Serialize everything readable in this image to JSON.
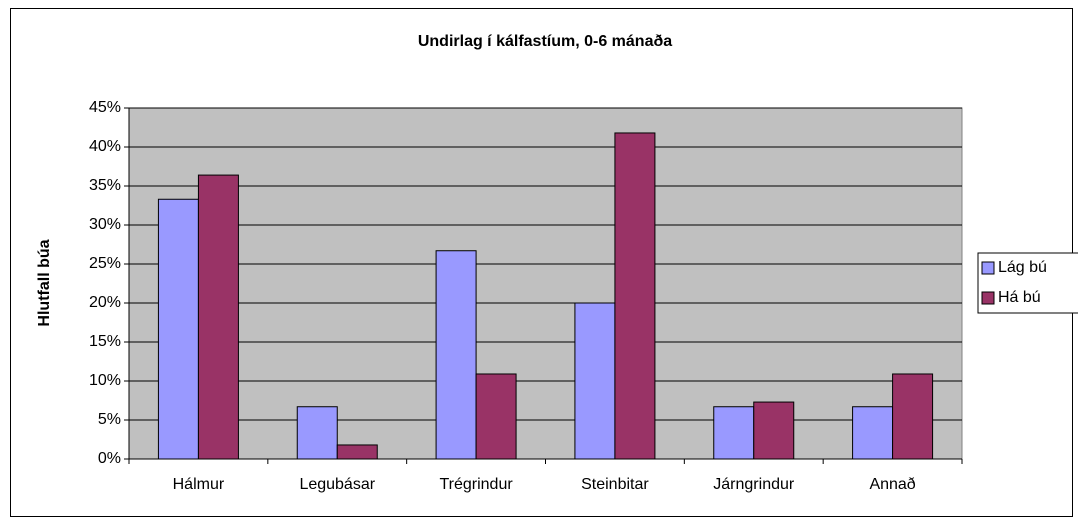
{
  "chart_data": {
    "type": "bar",
    "title": "Undirlag í kálfastíum, 0-6 mánaða",
    "ylabel": "Hlutfall búa",
    "categories": [
      "Hálmur",
      "Legubásar",
      "Trégrindur",
      "Steinbitar",
      "Járngrindur",
      "Annað"
    ],
    "series": [
      {
        "name": "Lág bú",
        "color": "#9999ff",
        "values": [
          33.3,
          6.7,
          26.7,
          20,
          6.7,
          6.7
        ]
      },
      {
        "name": "Há bú",
        "color": "#993366",
        "values": [
          36.4,
          1.8,
          10.9,
          41.8,
          7.3,
          10.9
        ]
      }
    ],
    "ylim": [
      0,
      45
    ],
    "yticks": [
      {
        "value": 0,
        "label": "0%"
      },
      {
        "value": 5,
        "label": "5%"
      },
      {
        "value": 10,
        "label": "10%"
      },
      {
        "value": 15,
        "label": "15%"
      },
      {
        "value": 20,
        "label": "20%"
      },
      {
        "value": 25,
        "label": "25%"
      },
      {
        "value": 30,
        "label": "30%"
      },
      {
        "value": 35,
        "label": "35%"
      },
      {
        "value": 40,
        "label": "40%"
      },
      {
        "value": 45,
        "label": "45%"
      }
    ],
    "grid": true,
    "legend": "right",
    "plot_background": "#c0c0c0"
  }
}
